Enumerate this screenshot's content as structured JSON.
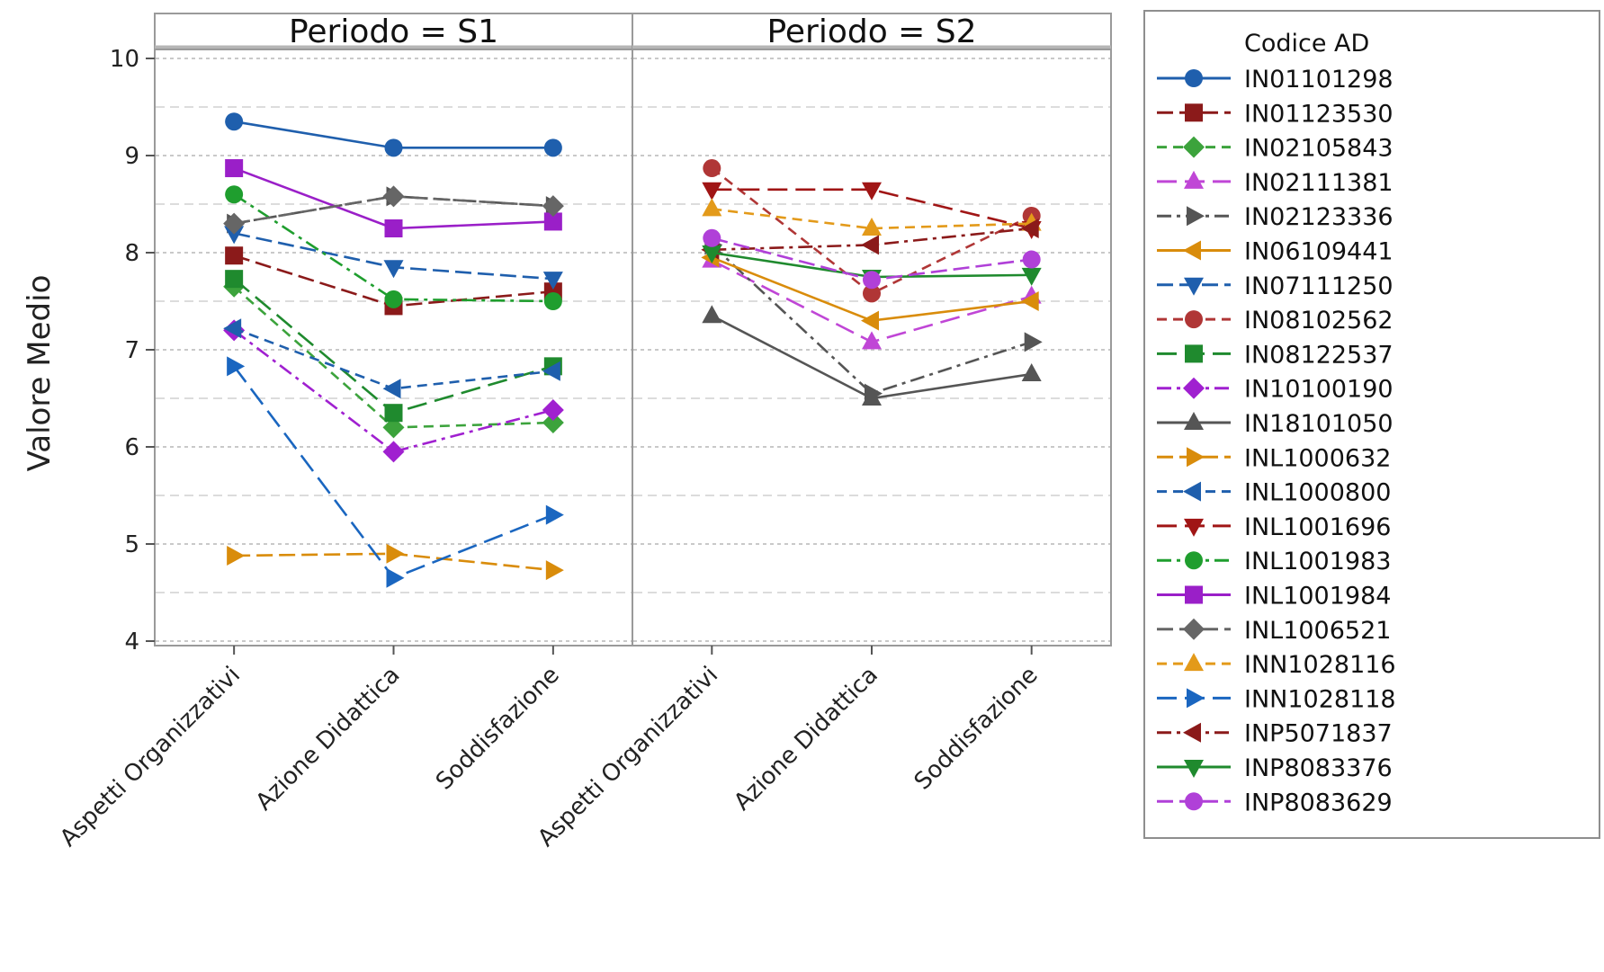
{
  "chart_data": {
    "type": "line",
    "ylabel": "Valore Medio",
    "ylim": [
      4,
      10
    ],
    "yticks": [
      4,
      5,
      6,
      7,
      8,
      9,
      10
    ],
    "grid": "horizontal dashed",
    "legend_position": "right",
    "legend_title": "Codice AD",
    "categories": [
      "Aspetti Organizzativi",
      "Azione Didattica",
      "Soddisfazione"
    ],
    "panels": [
      {
        "label": "Periodo = S1",
        "series": [
          {
            "name": "IN01101298",
            "values": [
              9.35,
              9.08,
              9.08
            ]
          },
          {
            "name": "IN01123530",
            "values": [
              7.97,
              7.45,
              7.6
            ]
          },
          {
            "name": "IN02105843",
            "values": [
              7.65,
              6.2,
              6.25
            ]
          },
          {
            "name": "IN02123336",
            "values": [
              8.3,
              8.58,
              8.48
            ]
          },
          {
            "name": "IN07111250",
            "values": [
              8.2,
              7.85,
              7.73
            ]
          },
          {
            "name": "IN08122537",
            "values": [
              7.73,
              6.35,
              6.83
            ]
          },
          {
            "name": "IN10100190",
            "values": [
              7.2,
              5.95,
              6.38
            ]
          },
          {
            "name": "INL1000632",
            "values": [
              4.88,
              4.9,
              4.73
            ]
          },
          {
            "name": "INL1000800",
            "values": [
              7.22,
              6.6,
              6.78
            ]
          },
          {
            "name": "INL1001983",
            "values": [
              8.6,
              7.52,
              7.5
            ]
          },
          {
            "name": "INL1001984",
            "values": [
              8.87,
              8.25,
              8.32
            ]
          },
          {
            "name": "INL1006521",
            "values": [
              8.3,
              8.58,
              8.48
            ]
          },
          {
            "name": "INN1028118",
            "values": [
              6.83,
              4.65,
              5.3
            ]
          }
        ]
      },
      {
        "label": "Periodo = S2",
        "series": [
          {
            "name": "IN02111381",
            "values": [
              7.92,
              7.08,
              7.55
            ]
          },
          {
            "name": "IN02123336",
            "values": [
              8.08,
              6.55,
              7.08
            ]
          },
          {
            "name": "IN06109441",
            "values": [
              7.95,
              7.3,
              7.5
            ]
          },
          {
            "name": "IN08102562",
            "values": [
              8.87,
              7.58,
              8.38
            ]
          },
          {
            "name": "IN18101050",
            "values": [
              7.35,
              6.5,
              6.75
            ]
          },
          {
            "name": "INL1001696",
            "values": [
              8.65,
              8.65,
              8.25
            ]
          },
          {
            "name": "INN1028116",
            "values": [
              8.45,
              8.25,
              8.3
            ]
          },
          {
            "name": "INP5071837",
            "values": [
              8.03,
              8.08,
              8.25
            ]
          },
          {
            "name": "INP8083376",
            "values": [
              8.0,
              7.75,
              7.77
            ]
          },
          {
            "name": "INP8083629",
            "values": [
              8.15,
              7.72,
              7.93
            ]
          }
        ]
      }
    ],
    "legend": [
      {
        "name": "IN01101298",
        "color": "#1f5fad",
        "marker": "circle",
        "dash": "solid"
      },
      {
        "name": "IN01123530",
        "color": "#8b1a1a",
        "marker": "square",
        "dash": "long"
      },
      {
        "name": "IN02105843",
        "color": "#3ca33c",
        "marker": "diamond",
        "dash": "dashed"
      },
      {
        "name": "IN02111381",
        "color": "#c046d6",
        "marker": "triangle-up",
        "dash": "longdash"
      },
      {
        "name": "IN02123336",
        "color": "#555555",
        "marker": "triangle-right",
        "dash": "dashdot"
      },
      {
        "name": "IN06109441",
        "color": "#d98c0b",
        "marker": "triangle-left",
        "dash": "solid"
      },
      {
        "name": "IN07111250",
        "color": "#1f5fad",
        "marker": "triangle-down",
        "dash": "long"
      },
      {
        "name": "IN08102562",
        "color": "#b03636",
        "marker": "circle",
        "dash": "dashed"
      },
      {
        "name": "IN08122537",
        "color": "#1f8a2e",
        "marker": "square",
        "dash": "longdash"
      },
      {
        "name": "IN10100190",
        "color": "#a020d0",
        "marker": "diamond",
        "dash": "dashdot"
      },
      {
        "name": "IN18101050",
        "color": "#555555",
        "marker": "triangle-up",
        "dash": "solid"
      },
      {
        "name": "INL1000632",
        "color": "#d98c0b",
        "marker": "triangle-right",
        "dash": "long"
      },
      {
        "name": "INL1000800",
        "color": "#1f5fad",
        "marker": "triangle-left",
        "dash": "dashed"
      },
      {
        "name": "INL1001696",
        "color": "#a01515",
        "marker": "triangle-down",
        "dash": "longdash"
      },
      {
        "name": "INL1001983",
        "color": "#1f9e2e",
        "marker": "circle",
        "dash": "dashdot"
      },
      {
        "name": "INL1001984",
        "color": "#9a1fc8",
        "marker": "square",
        "dash": "solid"
      },
      {
        "name": "INL1006521",
        "color": "#666666",
        "marker": "diamond",
        "dash": "long"
      },
      {
        "name": "INN1028116",
        "color": "#e39a1a",
        "marker": "triangle-up",
        "dash": "dashed"
      },
      {
        "name": "INN1028118",
        "color": "#1a66c0",
        "marker": "triangle-right",
        "dash": "longdash"
      },
      {
        "name": "INP5071837",
        "color": "#8b1a1a",
        "marker": "triangle-left",
        "dash": "dashdot"
      },
      {
        "name": "INP8083376",
        "color": "#1f8a2e",
        "marker": "triangle-down",
        "dash": "solid"
      },
      {
        "name": "INP8083629",
        "color": "#b040d8",
        "marker": "circle",
        "dash": "long"
      }
    ]
  }
}
